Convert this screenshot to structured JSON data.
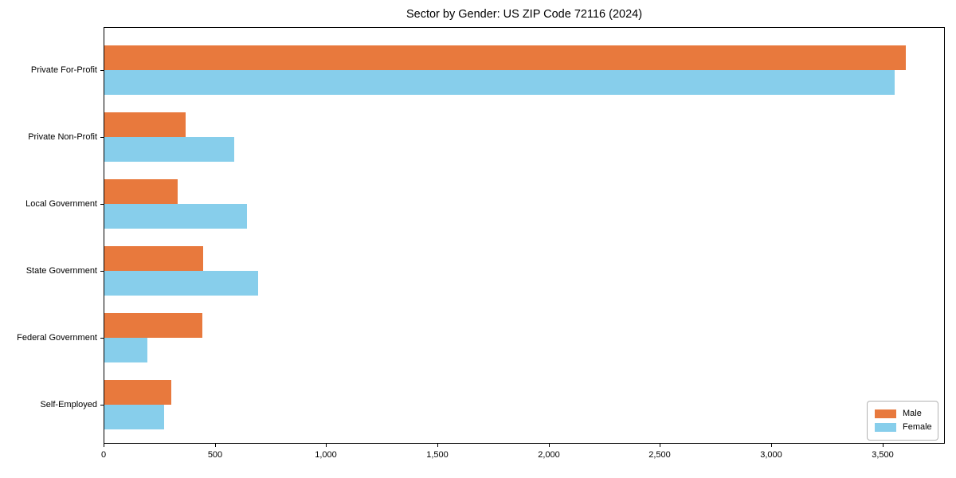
{
  "title": "Sector by Gender: US ZIP Code 72116 (2024)",
  "chart_data": {
    "type": "bar",
    "orientation": "horizontal",
    "title": "Sector by Gender: US ZIP Code 72116 (2024)",
    "xlabel": "",
    "ylabel": "",
    "categories": [
      "Private For-Profit",
      "Private Non-Profit",
      "Local Government",
      "State Government",
      "Federal Government",
      "Self-Employed"
    ],
    "series": [
      {
        "name": "Male",
        "color": "#e8793d",
        "values": [
          3600,
          365,
          330,
          445,
          440,
          300
        ]
      },
      {
        "name": "Female",
        "color": "#87ceeb",
        "values": [
          3550,
          585,
          640,
          690,
          195,
          270
        ]
      }
    ],
    "xlim": [
      0,
      3780
    ],
    "xticks": [
      0,
      500,
      1000,
      1500,
      2000,
      2500,
      3000,
      3500
    ],
    "xtick_labels": [
      "0",
      "500",
      "1,000",
      "1,500",
      "2,000",
      "2,500",
      "3,000",
      "3,500"
    ],
    "grid": false,
    "legend": {
      "position": "lower-right",
      "entries": [
        "Male",
        "Female"
      ]
    },
    "colors": {
      "axis": "#000000",
      "legend_border": "#b3b3b3",
      "background": "#ffffff"
    }
  }
}
